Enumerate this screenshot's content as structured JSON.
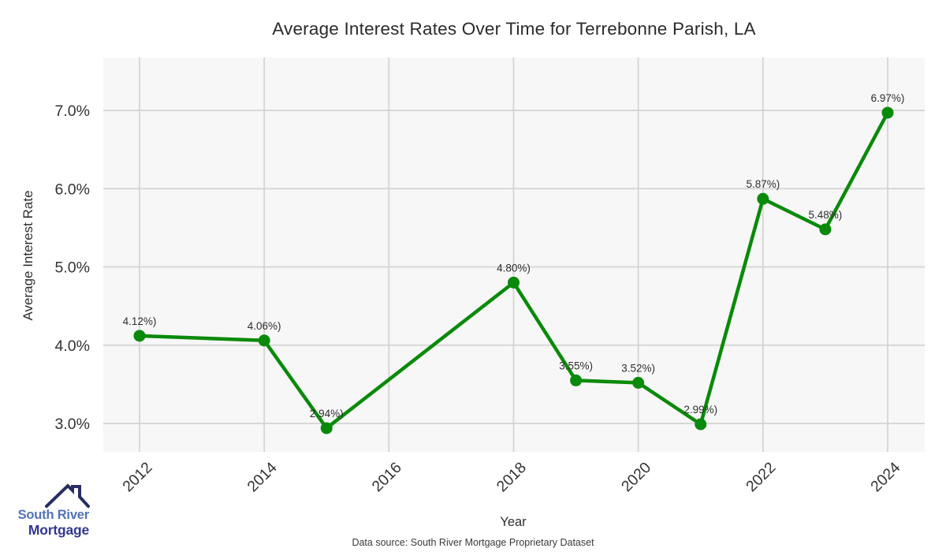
{
  "title": "Average Interest Rates Over Time for Terrebonne Parish, LA",
  "chart_data": {
    "type": "line",
    "x": [
      2012,
      2014,
      2015,
      2018,
      2019,
      2020,
      2021,
      2022,
      2023,
      2024
    ],
    "values": [
      4.12,
      4.06,
      2.94,
      4.8,
      3.55,
      3.52,
      2.99,
      5.87,
      5.48,
      6.97
    ],
    "point_labels": [
      "4.12%)",
      "4.06%)",
      "2.94%)",
      "4.80%)",
      "3.55%)",
      "3.52%)",
      "2.99%)",
      "5.87%)",
      "5.48%)",
      "6.97%)"
    ],
    "title": "Average Interest Rates Over Time for Terrebonne Parish, LA",
    "xlabel": "Year",
    "ylabel": "Average Interest Rate",
    "x_ticks": [
      {
        "label": "2012",
        "value": 2012
      },
      {
        "label": "2014",
        "value": 2014
      },
      {
        "label": "2016",
        "value": 2016
      },
      {
        "label": "2018",
        "value": 2018
      },
      {
        "label": "2020",
        "value": 2020
      },
      {
        "label": "2022",
        "value": 2022
      },
      {
        "label": "2024",
        "value": 2024
      }
    ],
    "y_ticks": [
      {
        "label": "3.0%",
        "value": 3.0
      },
      {
        "label": "4.0%",
        "value": 4.0
      },
      {
        "label": "5.0%",
        "value": 5.0
      },
      {
        "label": "6.0%",
        "value": 6.0
      },
      {
        "label": "7.0%",
        "value": 7.0
      }
    ],
    "xlim": [
      2011.42,
      2024.6
    ],
    "ylim": [
      2.64,
      7.68
    ],
    "grid": true,
    "legend": "none",
    "colors": {
      "line": "#0a8a0a",
      "point": "#0a8a0a",
      "panel_bg": "#f7f7f7",
      "grid": "#d4d4d4",
      "tick_text": "#333333",
      "annotation_text": "#2e2e2e"
    }
  },
  "footer": {
    "text": "Data source: South River Mortgage Proprietary Dataset"
  },
  "logo": {
    "line1": "South River",
    "line2": "Mortgage",
    "color1": "#5272b8",
    "color2": "#31388f",
    "roof_color": "#272e62"
  }
}
